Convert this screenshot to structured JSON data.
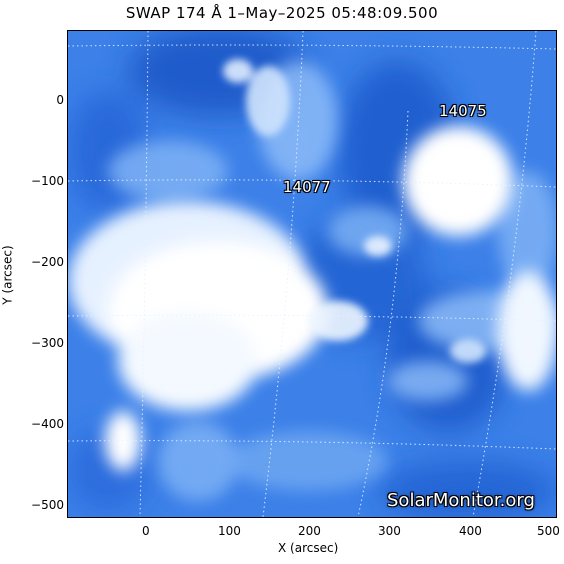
{
  "title": "SWAP 174 Å  1–May–2025 05:48:09.500",
  "axes": {
    "xlabel": "X (arcsec)",
    "ylabel": "Y (arcsec)",
    "xticks": [
      "0",
      "100",
      "200",
      "300",
      "400",
      "500"
    ],
    "yticks": [
      "0",
      "−100",
      "−200",
      "−300",
      "−400",
      "−500"
    ]
  },
  "regions": [
    {
      "label": "14075"
    },
    {
      "label": "14077"
    }
  ],
  "watermark": "SolarMonitor.org",
  "colors": {
    "deep_blue": "#1f5fd1",
    "mid_blue": "#3f86ee",
    "light_blue": "#9fc6fb",
    "bright": "#ffffff",
    "frame": "#000000"
  }
}
